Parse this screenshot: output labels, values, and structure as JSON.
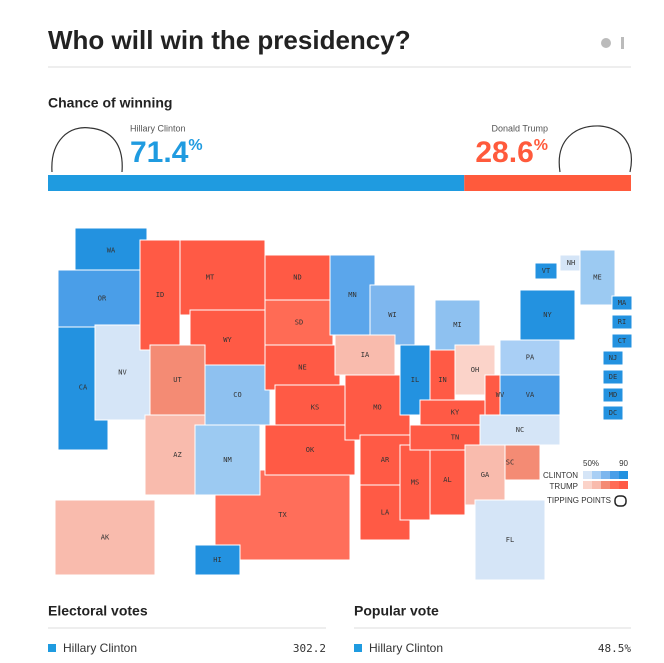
{
  "header": {
    "title": "Who will win the presidency?"
  },
  "chance": {
    "heading": "Chance of winning",
    "candidates": [
      {
        "name": "Hillary Clinton",
        "value": 71.4,
        "unit": "%",
        "color": "#1f9be0"
      },
      {
        "name": "Donald Trump",
        "value": 28.6,
        "unit": "%",
        "color": "#ff5a3c"
      }
    ]
  },
  "map": {
    "states": [
      {
        "abbr": "WA",
        "color": "#2392e0"
      },
      {
        "abbr": "OR",
        "color": "#4a9ee8"
      },
      {
        "abbr": "CA",
        "color": "#2392e0"
      },
      {
        "abbr": "NV",
        "color": "#d5e5f7"
      },
      {
        "abbr": "ID",
        "color": "#ff5a45"
      },
      {
        "abbr": "MT",
        "color": "#ff5a45"
      },
      {
        "abbr": "WY",
        "color": "#ff5a45"
      },
      {
        "abbr": "UT",
        "color": "#f48b74"
      },
      {
        "abbr": "AZ",
        "color": "#f9bbad"
      },
      {
        "abbr": "CO",
        "color": "#8ec1f0"
      },
      {
        "abbr": "NM",
        "color": "#9ccaf2"
      },
      {
        "abbr": "ND",
        "color": "#ff5a45"
      },
      {
        "abbr": "SD",
        "color": "#ff6b55"
      },
      {
        "abbr": "NE",
        "color": "#ff5a45"
      },
      {
        "abbr": "KS",
        "color": "#ff5a45"
      },
      {
        "abbr": "OK",
        "color": "#ff5a45"
      },
      {
        "abbr": "TX",
        "color": "#ff6e5a"
      },
      {
        "abbr": "MN",
        "color": "#5ba6eb"
      },
      {
        "abbr": "WI",
        "color": "#7db6ee"
      },
      {
        "abbr": "IA",
        "color": "#f9bbad"
      },
      {
        "abbr": "MO",
        "color": "#ff5a45"
      },
      {
        "abbr": "AR",
        "color": "#ff5a45"
      },
      {
        "abbr": "LA",
        "color": "#ff5a45"
      },
      {
        "abbr": "MS",
        "color": "#ff5a45"
      },
      {
        "abbr": "AL",
        "color": "#ff5a45"
      },
      {
        "abbr": "IL",
        "color": "#2392e0"
      },
      {
        "abbr": "IN",
        "color": "#ff5a45"
      },
      {
        "abbr": "MI",
        "color": "#8ec1f0"
      },
      {
        "abbr": "OH",
        "color": "#fbd3c9"
      },
      {
        "abbr": "KY",
        "color": "#ff5a45"
      },
      {
        "abbr": "TN",
        "color": "#ff5a45"
      },
      {
        "abbr": "WV",
        "color": "#ff5a45"
      },
      {
        "abbr": "VA",
        "color": "#4a9ee8"
      },
      {
        "abbr": "NC",
        "color": "#d5e5f7"
      },
      {
        "abbr": "SC",
        "color": "#f48b74"
      },
      {
        "abbr": "GA",
        "color": "#f9bbad"
      },
      {
        "abbr": "FL",
        "color": "#d5e5f7"
      },
      {
        "abbr": "PA",
        "color": "#a9cff5"
      },
      {
        "abbr": "NY",
        "color": "#2392e0"
      },
      {
        "abbr": "VT",
        "color": "#2392e0"
      },
      {
        "abbr": "NH",
        "color": "#d5e5f7"
      },
      {
        "abbr": "ME",
        "color": "#9ccaf2"
      },
      {
        "abbr": "MA",
        "color": "#2392e0"
      },
      {
        "abbr": "RI",
        "color": "#2392e0"
      },
      {
        "abbr": "CT",
        "color": "#2392e0"
      },
      {
        "abbr": "NJ",
        "color": "#2392e0"
      },
      {
        "abbr": "DE",
        "color": "#2392e0"
      },
      {
        "abbr": "MD",
        "color": "#2392e0"
      },
      {
        "abbr": "DC",
        "color": "#2392e0"
      },
      {
        "abbr": "AK",
        "color": "#f9bbad"
      },
      {
        "abbr": "HI",
        "color": "#2392e0"
      }
    ],
    "legend": {
      "low": "50%",
      "high": "90",
      "clinton": "CLINTON",
      "trump": "TRUMP",
      "tipping": "TIPPING POINTS"
    }
  },
  "electoral": {
    "heading": "Electoral votes",
    "name": "Hillary Clinton",
    "value": 302.2
  },
  "popular": {
    "heading": "Popular vote",
    "name": "Hillary Clinton",
    "value": "48.5%"
  }
}
